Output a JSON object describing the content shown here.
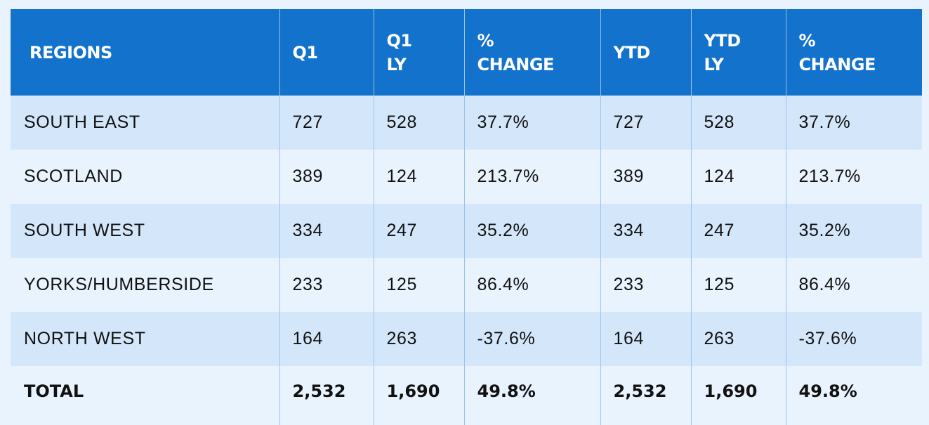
{
  "table": {
    "headers": [
      [
        "REGIONS",
        ""
      ],
      [
        "Q1",
        ""
      ],
      [
        "Q1",
        "LY"
      ],
      [
        "%",
        "CHANGE"
      ],
      [
        "YTD",
        ""
      ],
      [
        "YTD",
        "LY"
      ],
      [
        "%",
        "CHANGE"
      ]
    ],
    "rows": [
      [
        "SOUTH EAST",
        "727",
        "528",
        "37.7%",
        "727",
        "528",
        "37.7%"
      ],
      [
        "SCOTLAND",
        "389",
        "124",
        "213.7%",
        "389",
        "124",
        "213.7%"
      ],
      [
        "SOUTH WEST",
        "334",
        "247",
        "35.2%",
        "334",
        "247",
        "35.2%"
      ],
      [
        "YORKS/HUMBERSIDE",
        "233",
        "125",
        "86.4%",
        "233",
        "125",
        "86.4%"
      ],
      [
        "NORTH WEST",
        "164",
        "263",
        "-37.6%",
        "164",
        "263",
        "-37.6%"
      ]
    ],
    "total": [
      "TOTAL",
      "2,532",
      "1,690",
      "49.8%",
      "2,532",
      "1,690",
      "49.8%"
    ]
  },
  "colors": {
    "header_bg": "#1272cc",
    "row_shade": "#d4e7fa",
    "row_plain": "#e9f3fd",
    "divider": "#9cc3ea"
  }
}
